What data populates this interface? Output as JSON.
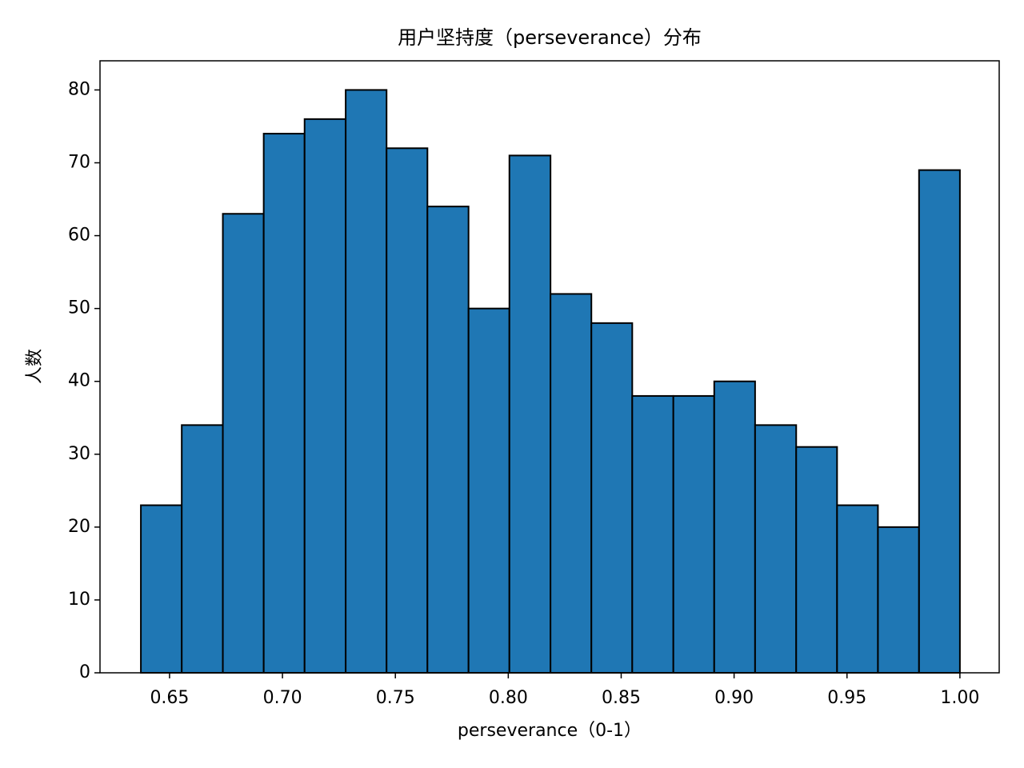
{
  "chart_data": {
    "type": "histogram",
    "title": "用户坚持度（perseverance）分布",
    "x_label": "perseverance（0-1）",
    "y_label": "人数",
    "bins": [
      0.6373,
      0.6554,
      0.6736,
      0.6917,
      0.7098,
      0.728,
      0.7461,
      0.7642,
      0.7824,
      0.8005,
      0.8187,
      0.8368,
      0.8549,
      0.8731,
      0.8912,
      0.9093,
      0.9275,
      0.9456,
      0.9637,
      0.9819,
      1.0
    ],
    "values": [
      23,
      34,
      63,
      74,
      76,
      80,
      72,
      64,
      50,
      71,
      52,
      48,
      38,
      38,
      40,
      34,
      31,
      23,
      20,
      69
    ],
    "color": "#1f77b4",
    "edgecolor": "#000000",
    "xlim": [
      0.6192,
      1.0174
    ],
    "ylim": [
      0,
      84
    ],
    "xticks": [
      0.65,
      {
        "value": 0.7,
        "label": "0.70"
      },
      0.75,
      {
        "value": 0.8,
        "label": "0.80"
      },
      0.85,
      {
        "value": 0.9,
        "label": "0.90"
      },
      0.95,
      {
        "value": 1.0,
        "label": "1.00"
      }
    ],
    "yticks": [
      0,
      10,
      20,
      30,
      40,
      50,
      60,
      70,
      80
    ]
  }
}
